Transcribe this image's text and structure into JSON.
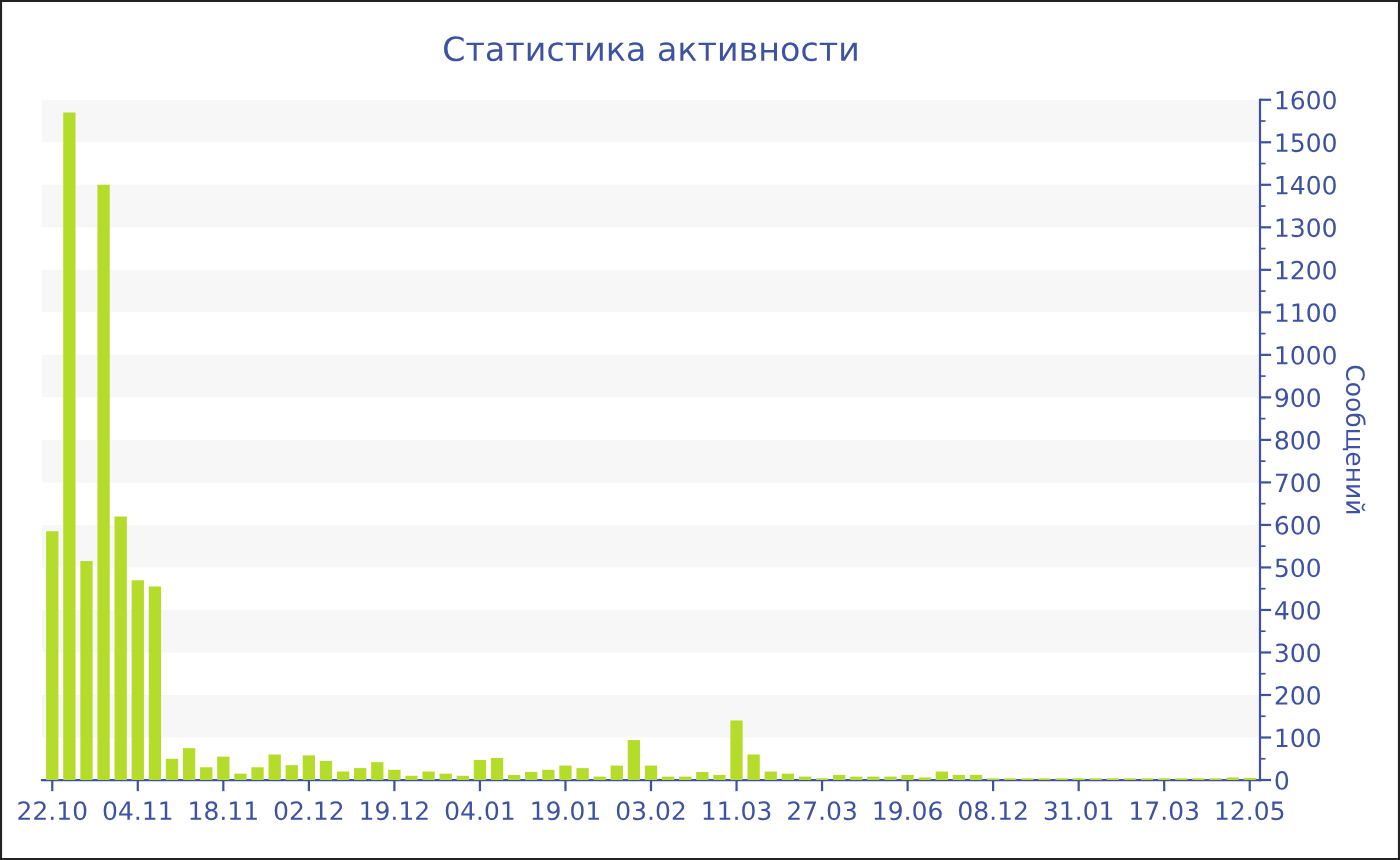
{
  "chart_data": {
    "type": "bar",
    "title": "Статистика активности",
    "ylabel": "Сообщений",
    "categories": [
      "22.10",
      null,
      null,
      null,
      null,
      "04.11",
      null,
      null,
      null,
      null,
      "18.11",
      null,
      null,
      null,
      null,
      "02.12",
      null,
      null,
      null,
      null,
      "19.12",
      null,
      null,
      null,
      null,
      "04.01",
      null,
      null,
      null,
      null,
      "19.01",
      null,
      null,
      null,
      null,
      "03.02",
      null,
      null,
      null,
      null,
      "11.03",
      null,
      null,
      null,
      null,
      "27.03",
      null,
      null,
      null,
      null,
      "19.06",
      null,
      null,
      null,
      null,
      "08.12",
      null,
      null,
      null,
      null,
      "31.01",
      null,
      null,
      null,
      null,
      "17.03",
      null,
      null,
      null,
      null,
      "12.05"
    ],
    "values": [
      585,
      1570,
      515,
      1400,
      620,
      470,
      455,
      50,
      75,
      30,
      55,
      15,
      30,
      60,
      35,
      58,
      45,
      20,
      28,
      42,
      24,
      10,
      20,
      15,
      10,
      47,
      52,
      12,
      19,
      24,
      34,
      28,
      8,
      34,
      94,
      34,
      8,
      8,
      19,
      12,
      140,
      60,
      20,
      15,
      8,
      4,
      12,
      8,
      8,
      8,
      12,
      6,
      20,
      12,
      12,
      4,
      4,
      4,
      4,
      4,
      4,
      4,
      4,
      4,
      4,
      4,
      4,
      4,
      4,
      6,
      5
    ],
    "color": "#b5dc2a",
    "ylim": [
      0,
      1600
    ],
    "yticks": [
      0,
      100,
      200,
      300,
      400,
      500,
      600,
      700,
      800,
      900,
      1000,
      1100,
      1200,
      1300,
      1400,
      1500,
      1600
    ],
    "bands": [
      {
        "axis": "y",
        "from": 100,
        "to": 200,
        "color": "#f7f7f7"
      },
      {
        "axis": "y",
        "from": 300,
        "to": 400,
        "color": "#f7f7f7"
      },
      {
        "axis": "y",
        "from": 500,
        "to": 600,
        "color": "#f7f7f7"
      },
      {
        "axis": "y",
        "from": 700,
        "to": 800,
        "color": "#f7f7f7"
      },
      {
        "axis": "y",
        "from": 900,
        "to": 1000,
        "color": "#f7f7f7"
      },
      {
        "axis": "y",
        "from": 1100,
        "to": 1200,
        "color": "#f7f7f7"
      },
      {
        "axis": "y",
        "from": 1300,
        "to": 1400,
        "color": "#f7f7f7"
      },
      {
        "axis": "y",
        "from": 1500,
        "to": 1600,
        "color": "#f7f7f7"
      }
    ]
  }
}
